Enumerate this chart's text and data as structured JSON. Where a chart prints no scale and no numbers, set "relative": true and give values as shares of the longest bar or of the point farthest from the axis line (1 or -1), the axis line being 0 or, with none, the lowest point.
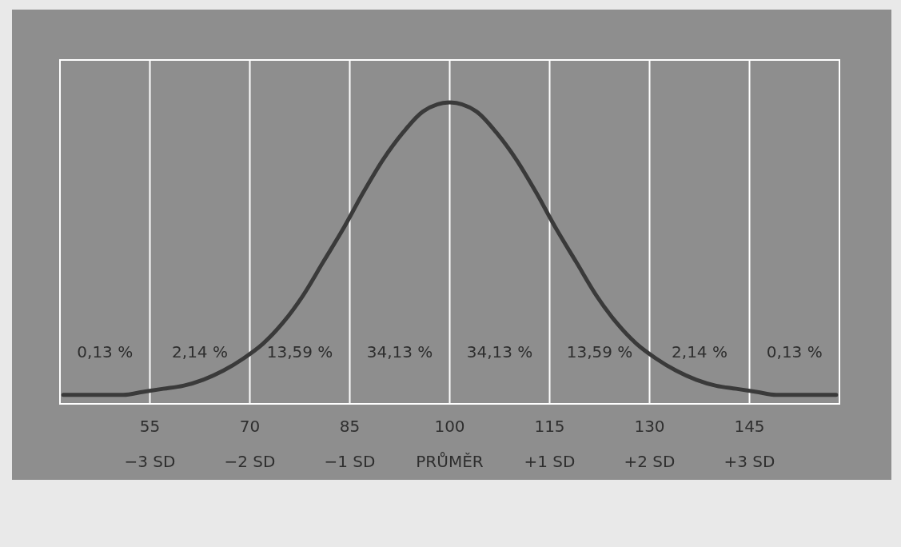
{
  "chart_data": {
    "type": "line",
    "relative": true,
    "xlim": [
      41.5,
      158.5
    ],
    "xticks": [
      55,
      70,
      85,
      100,
      115,
      130,
      145
    ],
    "grid": "x",
    "series": [
      {
        "color": "#3a3a3a",
        "x": [
          42,
          45,
          48,
          51,
          54,
          57,
          60,
          63,
          66,
          69,
          72,
          75,
          78,
          81,
          84,
          87,
          90,
          93,
          96,
          100,
          104,
          107,
          110,
          113,
          116,
          119,
          122,
          125,
          128,
          131,
          134,
          137,
          140,
          143,
          146,
          149,
          152,
          155,
          158
        ],
        "values": [
          0.03,
          0.03,
          0.03,
          0.03,
          0.04,
          0.05,
          0.06,
          0.08,
          0.11,
          0.15,
          0.2,
          0.27,
          0.36,
          0.47,
          0.58,
          0.7,
          0.81,
          0.9,
          0.97,
          1,
          0.97,
          0.9,
          0.81,
          0.7,
          0.58,
          0.47,
          0.36,
          0.27,
          0.2,
          0.15,
          0.11,
          0.08,
          0.06,
          0.05,
          0.04,
          0.03,
          0.03,
          0.03,
          0.03
        ]
      }
    ],
    "annotations": [
      "0,13 %",
      "2,14 %",
      "13,59 %",
      "34,13 %",
      "34,13 %",
      "13,59 %",
      "2,14 %",
      "0,13 %",
      "−3 SD",
      "−2 SD",
      "−1 SD",
      "PRŮMĚR",
      "+1 SD",
      "+2 SD",
      "+3 SD"
    ]
  }
}
